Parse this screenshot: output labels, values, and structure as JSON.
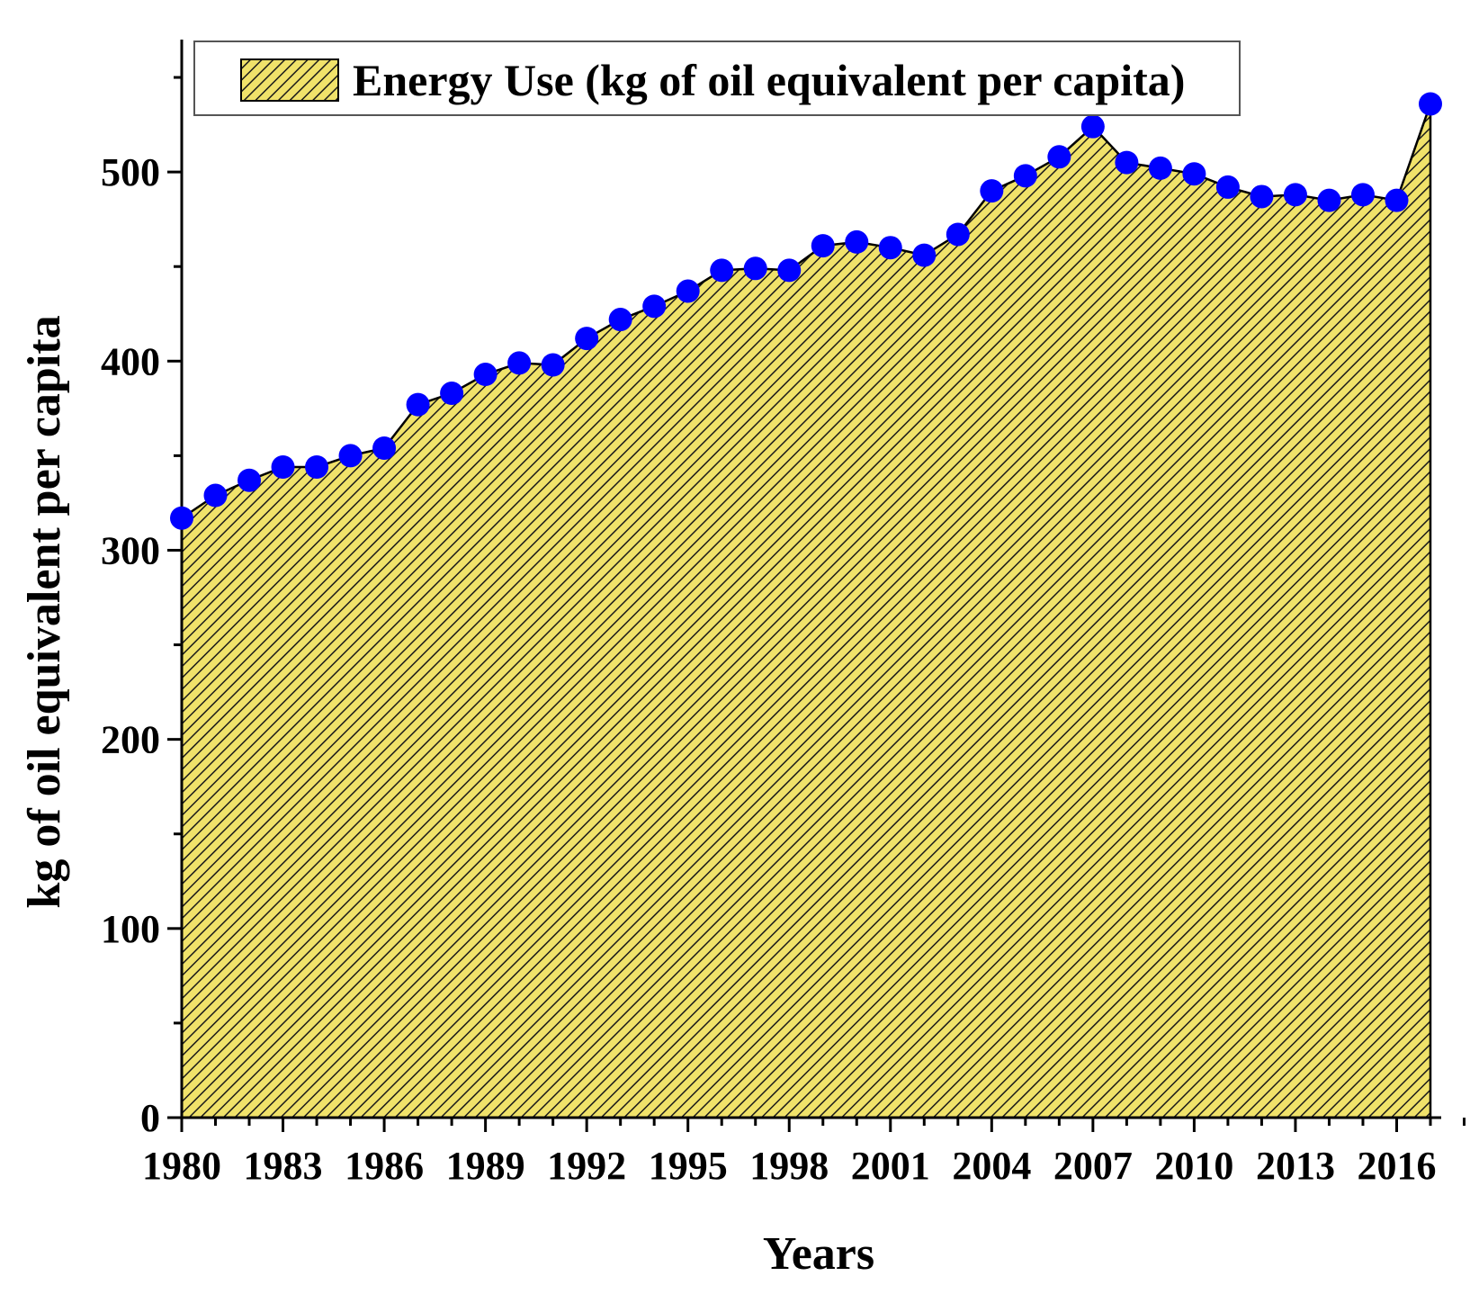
{
  "chart_data": {
    "type": "area",
    "title": "",
    "xlabel": "Years",
    "ylabel": "kg of oil equivalent per capita",
    "xlim": [
      1980,
      2017
    ],
    "ylim": [
      0,
      570
    ],
    "x_ticks": [
      "1980",
      "1983",
      "1986",
      "1989",
      "1992",
      "1995",
      "1998",
      "2001",
      "2004",
      "2007",
      "2010",
      "2013",
      "2016"
    ],
    "y_ticks": [
      "0",
      "100",
      "200",
      "300",
      "400",
      "500"
    ],
    "legend": {
      "position": "top",
      "label": "Energy Use (kg of oil equivalent per capita)"
    },
    "colors": {
      "fill": "#f0e26a",
      "hatch": "#1a1a1a",
      "marker": "#0000ff",
      "line": "#000000"
    },
    "series": [
      {
        "name": "Energy Use (kg of oil equivalent per capita)",
        "x": [
          1980,
          1981,
          1982,
          1983,
          1984,
          1985,
          1986,
          1987,
          1988,
          1989,
          1990,
          1991,
          1992,
          1993,
          1994,
          1995,
          1996,
          1997,
          1998,
          1999,
          2000,
          2001,
          2002,
          2003,
          2004,
          2005,
          2006,
          2007,
          2008,
          2009,
          2010,
          2011,
          2012,
          2013,
          2014,
          2015,
          2016,
          2017
        ],
        "values": [
          317,
          329,
          337,
          344,
          344,
          350,
          354,
          377,
          383,
          393,
          399,
          398,
          412,
          422,
          429,
          437,
          448,
          449,
          448,
          461,
          463,
          460,
          456,
          467,
          490,
          498,
          508,
          524,
          505,
          502,
          499,
          492,
          487,
          488,
          485,
          488,
          485,
          536
        ]
      }
    ]
  }
}
